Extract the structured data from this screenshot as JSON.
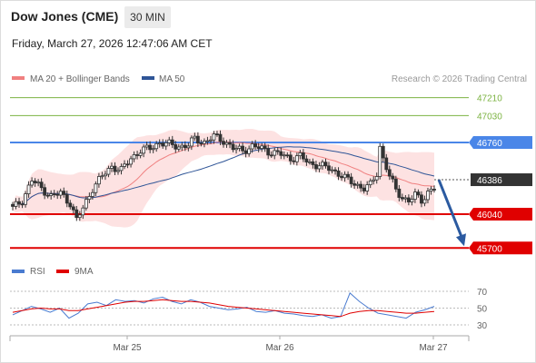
{
  "header": {
    "instrument": "Dow Jones (CME)",
    "timeframe": "30 MIN",
    "timestamp": "Friday, March 27, 2026 12:47:06 AM CET"
  },
  "legend": {
    "items": [
      {
        "label": "MA 20 + Bollinger Bands",
        "color": "#f08080"
      },
      {
        "label": "MA 50",
        "color": "#2f5597"
      }
    ],
    "research": "Research © 2026 Trading Central"
  },
  "colors": {
    "resistance_green": "#7cb342",
    "pivot_blue": "#4a86e8",
    "support_red": "#e00000",
    "price_box": "#333333",
    "candle": "#333333",
    "band_fill": "#fde2e2",
    "ma20": "#f08080",
    "ma50": "#2f5597",
    "arrow": "#2b5aa0",
    "rsi": "#4a7bd0",
    "rsi_ma": "#e00000"
  },
  "chart_data": {
    "type": "candlestick",
    "ylim": [
      45500,
      47400
    ],
    "x_ticks": [
      "Mar 25",
      "Mar 26",
      "Mar 27"
    ],
    "levels": [
      {
        "value": 47210,
        "label": "47210",
        "kind": "resistance"
      },
      {
        "value": 47030,
        "label": "47030",
        "kind": "resistance"
      },
      {
        "value": 46760,
        "label": "46760",
        "kind": "pivot"
      },
      {
        "value": 46386,
        "label": "46386",
        "kind": "last"
      },
      {
        "value": 46040,
        "label": "46040",
        "kind": "support"
      },
      {
        "value": 45700,
        "label": "45700",
        "kind": "support"
      }
    ],
    "price_anchors": [
      [
        0,
        46100
      ],
      [
        3,
        46180
      ],
      [
        6,
        46380
      ],
      [
        9,
        46300
      ],
      [
        12,
        46220
      ],
      [
        15,
        46250
      ],
      [
        18,
        46150
      ],
      [
        20,
        45980
      ],
      [
        22,
        46100
      ],
      [
        25,
        46300
      ],
      [
        28,
        46420
      ],
      [
        31,
        46520
      ],
      [
        34,
        46480
      ],
      [
        37,
        46600
      ],
      [
        40,
        46680
      ],
      [
        43,
        46700
      ],
      [
        46,
        46760
      ],
      [
        49,
        46740
      ],
      [
        52,
        46720
      ],
      [
        55,
        46730
      ],
      [
        57,
        46800
      ],
      [
        60,
        46760
      ],
      [
        63,
        46820
      ],
      [
        66,
        46780
      ],
      [
        69,
        46700
      ],
      [
        72,
        46680
      ],
      [
        75,
        46720
      ],
      [
        78,
        46700
      ],
      [
        81,
        46660
      ],
      [
        84,
        46640
      ],
      [
        87,
        46600
      ],
      [
        90,
        46620
      ],
      [
        93,
        46550
      ],
      [
        96,
        46530
      ],
      [
        99,
        46500
      ],
      [
        102,
        46450
      ],
      [
        105,
        46380
      ],
      [
        108,
        46330
      ],
      [
        110,
        46300
      ],
      [
        112,
        46330
      ],
      [
        114,
        46450
      ],
      [
        115,
        46720
      ],
      [
        116,
        46600
      ],
      [
        118,
        46420
      ],
      [
        120,
        46280
      ],
      [
        122,
        46210
      ],
      [
        124,
        46170
      ],
      [
        126,
        46230
      ],
      [
        128,
        46180
      ],
      [
        130,
        46260
      ],
      [
        132,
        46300
      ]
    ],
    "rsi": {
      "ticks": [
        70,
        50,
        30
      ],
      "series": [
        {
          "name": "RSI",
          "values": [
            42,
            47,
            52,
            49,
            45,
            50,
            38,
            44,
            55,
            57,
            53,
            60,
            58,
            59,
            56,
            61,
            63,
            58,
            55,
            60,
            57,
            52,
            50,
            48,
            49,
            51,
            46,
            45,
            47,
            44,
            43,
            41,
            40,
            42,
            38,
            40,
            68,
            58,
            50,
            44,
            42,
            40,
            38,
            45,
            48,
            52
          ]
        },
        {
          "name": "9MA",
          "values": [
            45,
            47,
            49,
            50,
            49,
            49,
            47,
            47,
            49,
            51,
            53,
            55,
            57,
            58,
            58,
            59,
            60,
            59,
            58,
            58,
            57,
            56,
            54,
            52,
            51,
            50,
            49,
            48,
            47,
            46,
            45,
            44,
            43,
            42,
            41,
            40,
            44,
            46,
            47,
            47,
            46,
            45,
            44,
            44,
            45,
            46
          ]
        }
      ]
    }
  }
}
